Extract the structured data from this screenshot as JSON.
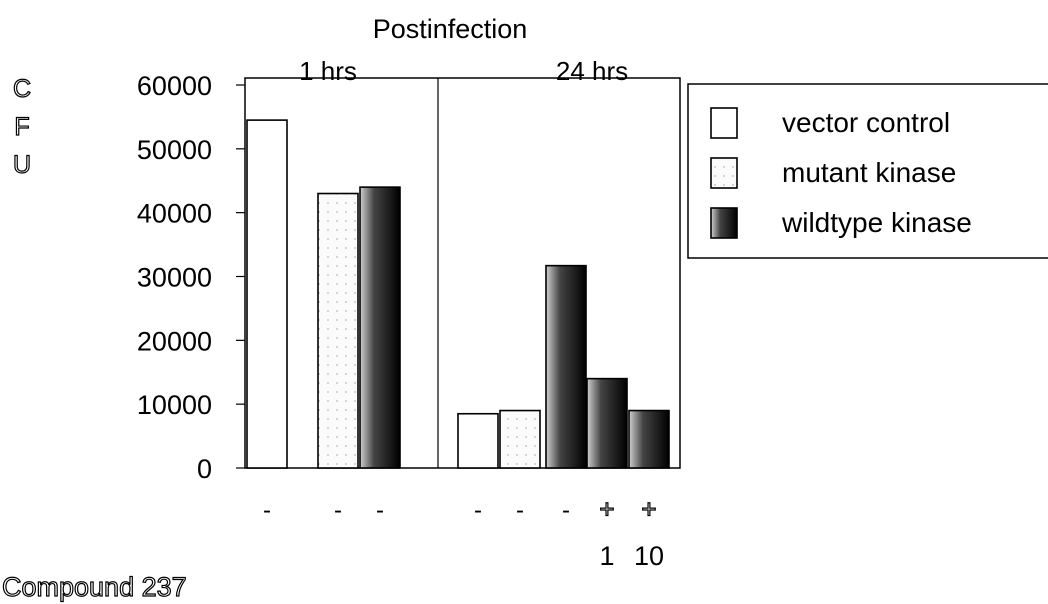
{
  "chart_data": {
    "type": "bar",
    "title": "Postinfection",
    "ylabel": "CFU",
    "ylim": [
      0,
      60000
    ],
    "yticks": [
      0,
      10000,
      20000,
      30000,
      40000,
      50000,
      60000
    ],
    "yticklabels": [
      "0",
      "10000",
      "20000",
      "30000",
      "40000",
      "50000",
      "60000"
    ],
    "panels": [
      {
        "label": "1 hrs",
        "bars": [
          0,
          1,
          2
        ]
      },
      {
        "label": "24 hrs",
        "bars": [
          3,
          4,
          5,
          6,
          7
        ]
      }
    ],
    "series": [
      {
        "name": "vector control",
        "color": "#ffffff",
        "style": "hollow"
      },
      {
        "name": "mutant kinase",
        "color": "#fafafa",
        "style": "dotted"
      },
      {
        "name": "wildtype kinase",
        "color": "#000000",
        "style": "gradient"
      }
    ],
    "bars": [
      {
        "series": 0,
        "value": 54500,
        "compound": "-",
        "dose": ""
      },
      {
        "series": 1,
        "value": 43000,
        "compound": "-",
        "dose": ""
      },
      {
        "series": 2,
        "value": 44000,
        "compound": "-",
        "dose": ""
      },
      {
        "series": 0,
        "value": 8500,
        "compound": "-",
        "dose": ""
      },
      {
        "series": 1,
        "value": 9000,
        "compound": "-",
        "dose": ""
      },
      {
        "series": 2,
        "value": 31700,
        "compound": "-",
        "dose": ""
      },
      {
        "series": 2,
        "value": 14000,
        "compound": "+",
        "dose": "1"
      },
      {
        "series": 2,
        "value": 9000,
        "compound": "+",
        "dose": "10"
      }
    ],
    "row_label": "Compound 237",
    "legend_position": "right",
    "grid": false
  }
}
